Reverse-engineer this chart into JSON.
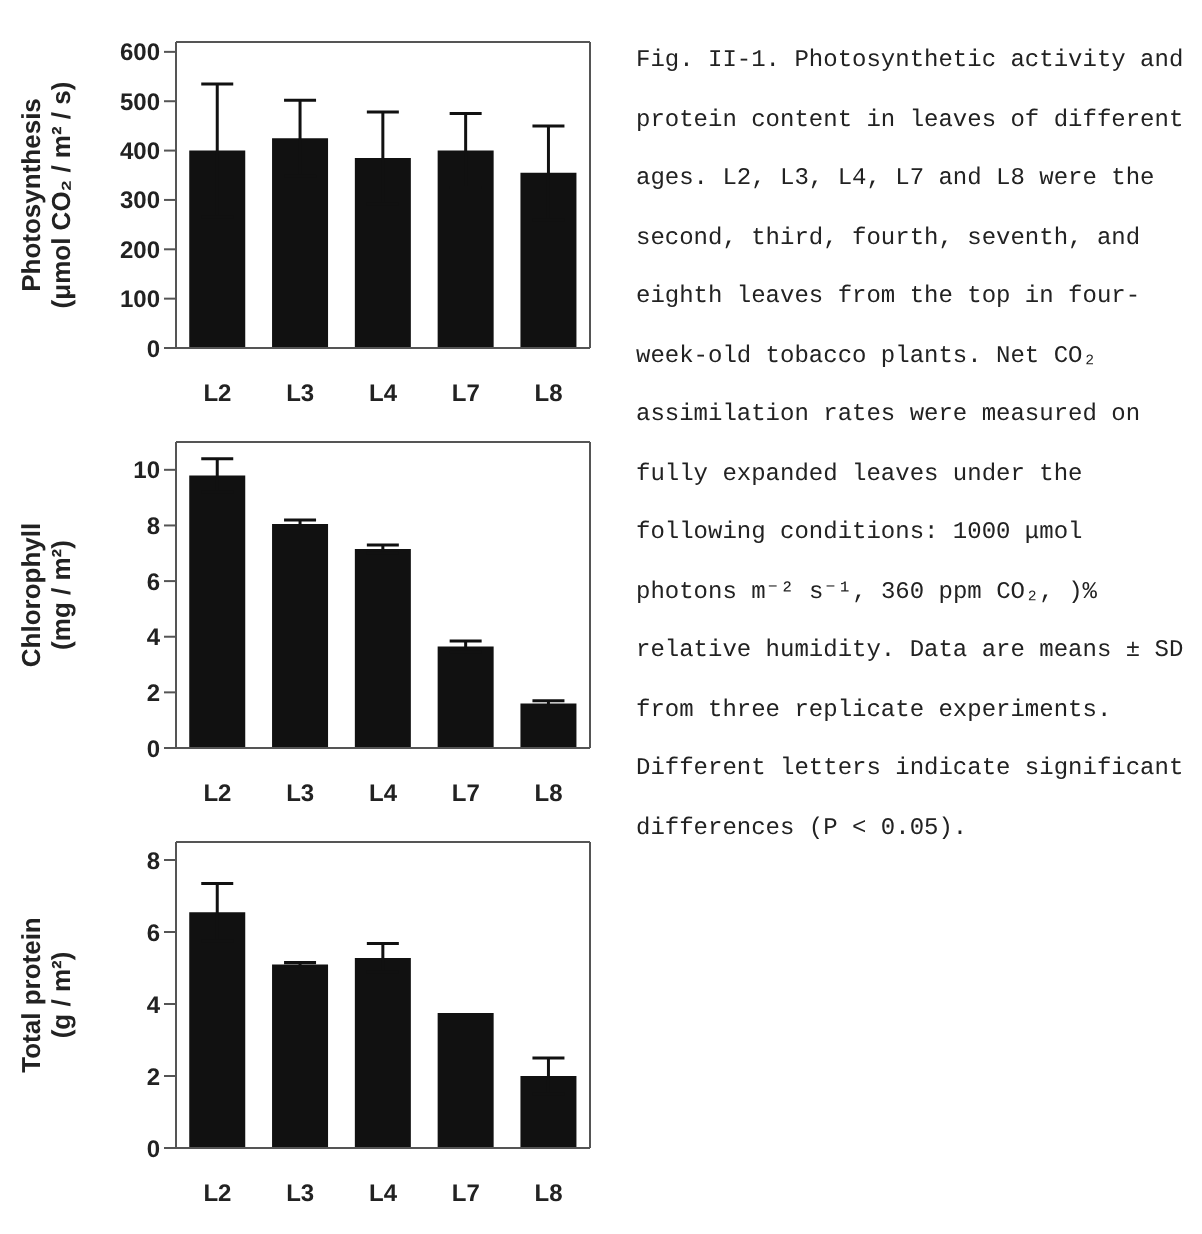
{
  "chart_data": [
    {
      "type": "bar",
      "ylabel": "Photosynthesis (μmol CO₂ / m² / s)",
      "categories": [
        "L2",
        "L3",
        "L4",
        "L7",
        "L8"
      ],
      "values": [
        400,
        425,
        385,
        400,
        355
      ],
      "errors": [
        135,
        77,
        93,
        75,
        95
      ],
      "color": "#111111",
      "ylim": [
        0,
        620
      ],
      "yticks": [
        0,
        100,
        200,
        300,
        400,
        500,
        600
      ]
    },
    {
      "type": "bar",
      "ylabel": "Chlorophyll (mg / m²)",
      "categories": [
        "L2",
        "L3",
        "L4",
        "L7",
        "L8"
      ],
      "values": [
        9.8,
        8.05,
        7.15,
        3.65,
        1.6
      ],
      "errors": [
        0.6,
        0.15,
        0.15,
        0.2,
        0.1
      ],
      "color": "#111111",
      "ylim": [
        0,
        11
      ],
      "yticks": [
        0,
        2,
        4,
        6,
        8,
        10
      ]
    },
    {
      "type": "bar",
      "ylabel": "Total protein (g / m²)",
      "categories": [
        "L2",
        "L3",
        "L4",
        "L7",
        "L8"
      ],
      "values": [
        6.55,
        5.1,
        5.28,
        3.75,
        2.0
      ],
      "errors": [
        0.8,
        0.05,
        0.4,
        null,
        0.5
      ],
      "color": "#111111",
      "ylim": [
        0,
        8.5
      ],
      "yticks": [
        0,
        2,
        4,
        6,
        8
      ]
    },
    {
      "type": "other",
      "annotations": [
        "Fig. II-1. Photosynthetic activity and protein content in leaves of different ages. L2, L3, L4, L7 and L8 were the second, third, fourth, seventh, and eighth leaves from the top in four-week-old tobacco plants. Net CO₂ assimilation rates were measured on fully expanded leaves under the following conditions: 1000 μmol photons m⁻² s⁻¹, 360 ppm CO₂, )% relative humidity. Data are means ± SD from three replicate experiments. Different letters indicate significant differences (P < 0.05)."
      ]
    }
  ]
}
